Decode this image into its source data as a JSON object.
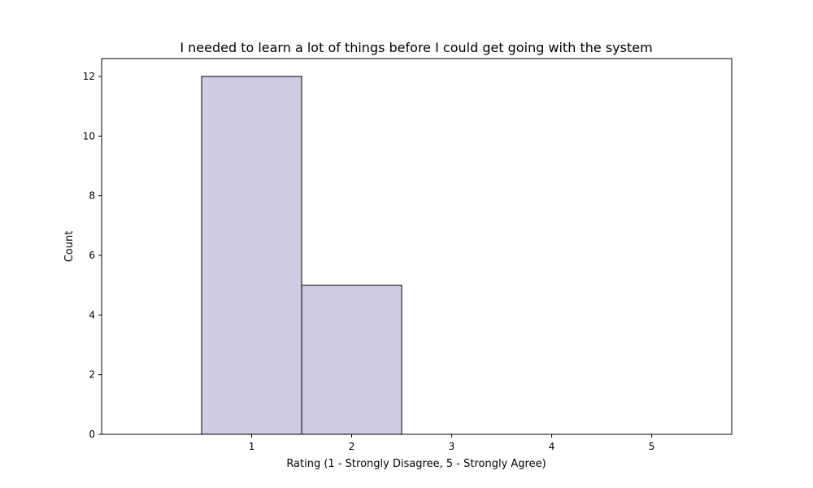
{
  "chart_data": {
    "type": "bar",
    "title": "I needed to learn a lot of things before I could get going with the system",
    "xlabel": "Rating (1 - Strongly Disagree, 5 - Strongly Agree)",
    "ylabel": "Count",
    "categories": [
      "1",
      "2",
      "3",
      "4",
      "5"
    ],
    "values": [
      12,
      5,
      0,
      0,
      0
    ],
    "xlim": [
      -0.5,
      5.8
    ],
    "ylim": [
      0,
      12.6
    ],
    "yticks": [
      0,
      2,
      4,
      6,
      8,
      10,
      12
    ],
    "xticks": [
      1,
      2,
      3,
      4,
      5
    ],
    "grid": false,
    "legend": "none",
    "colors": {
      "bar_fill": "#cecbe3",
      "bar_edge": "#000000"
    }
  }
}
